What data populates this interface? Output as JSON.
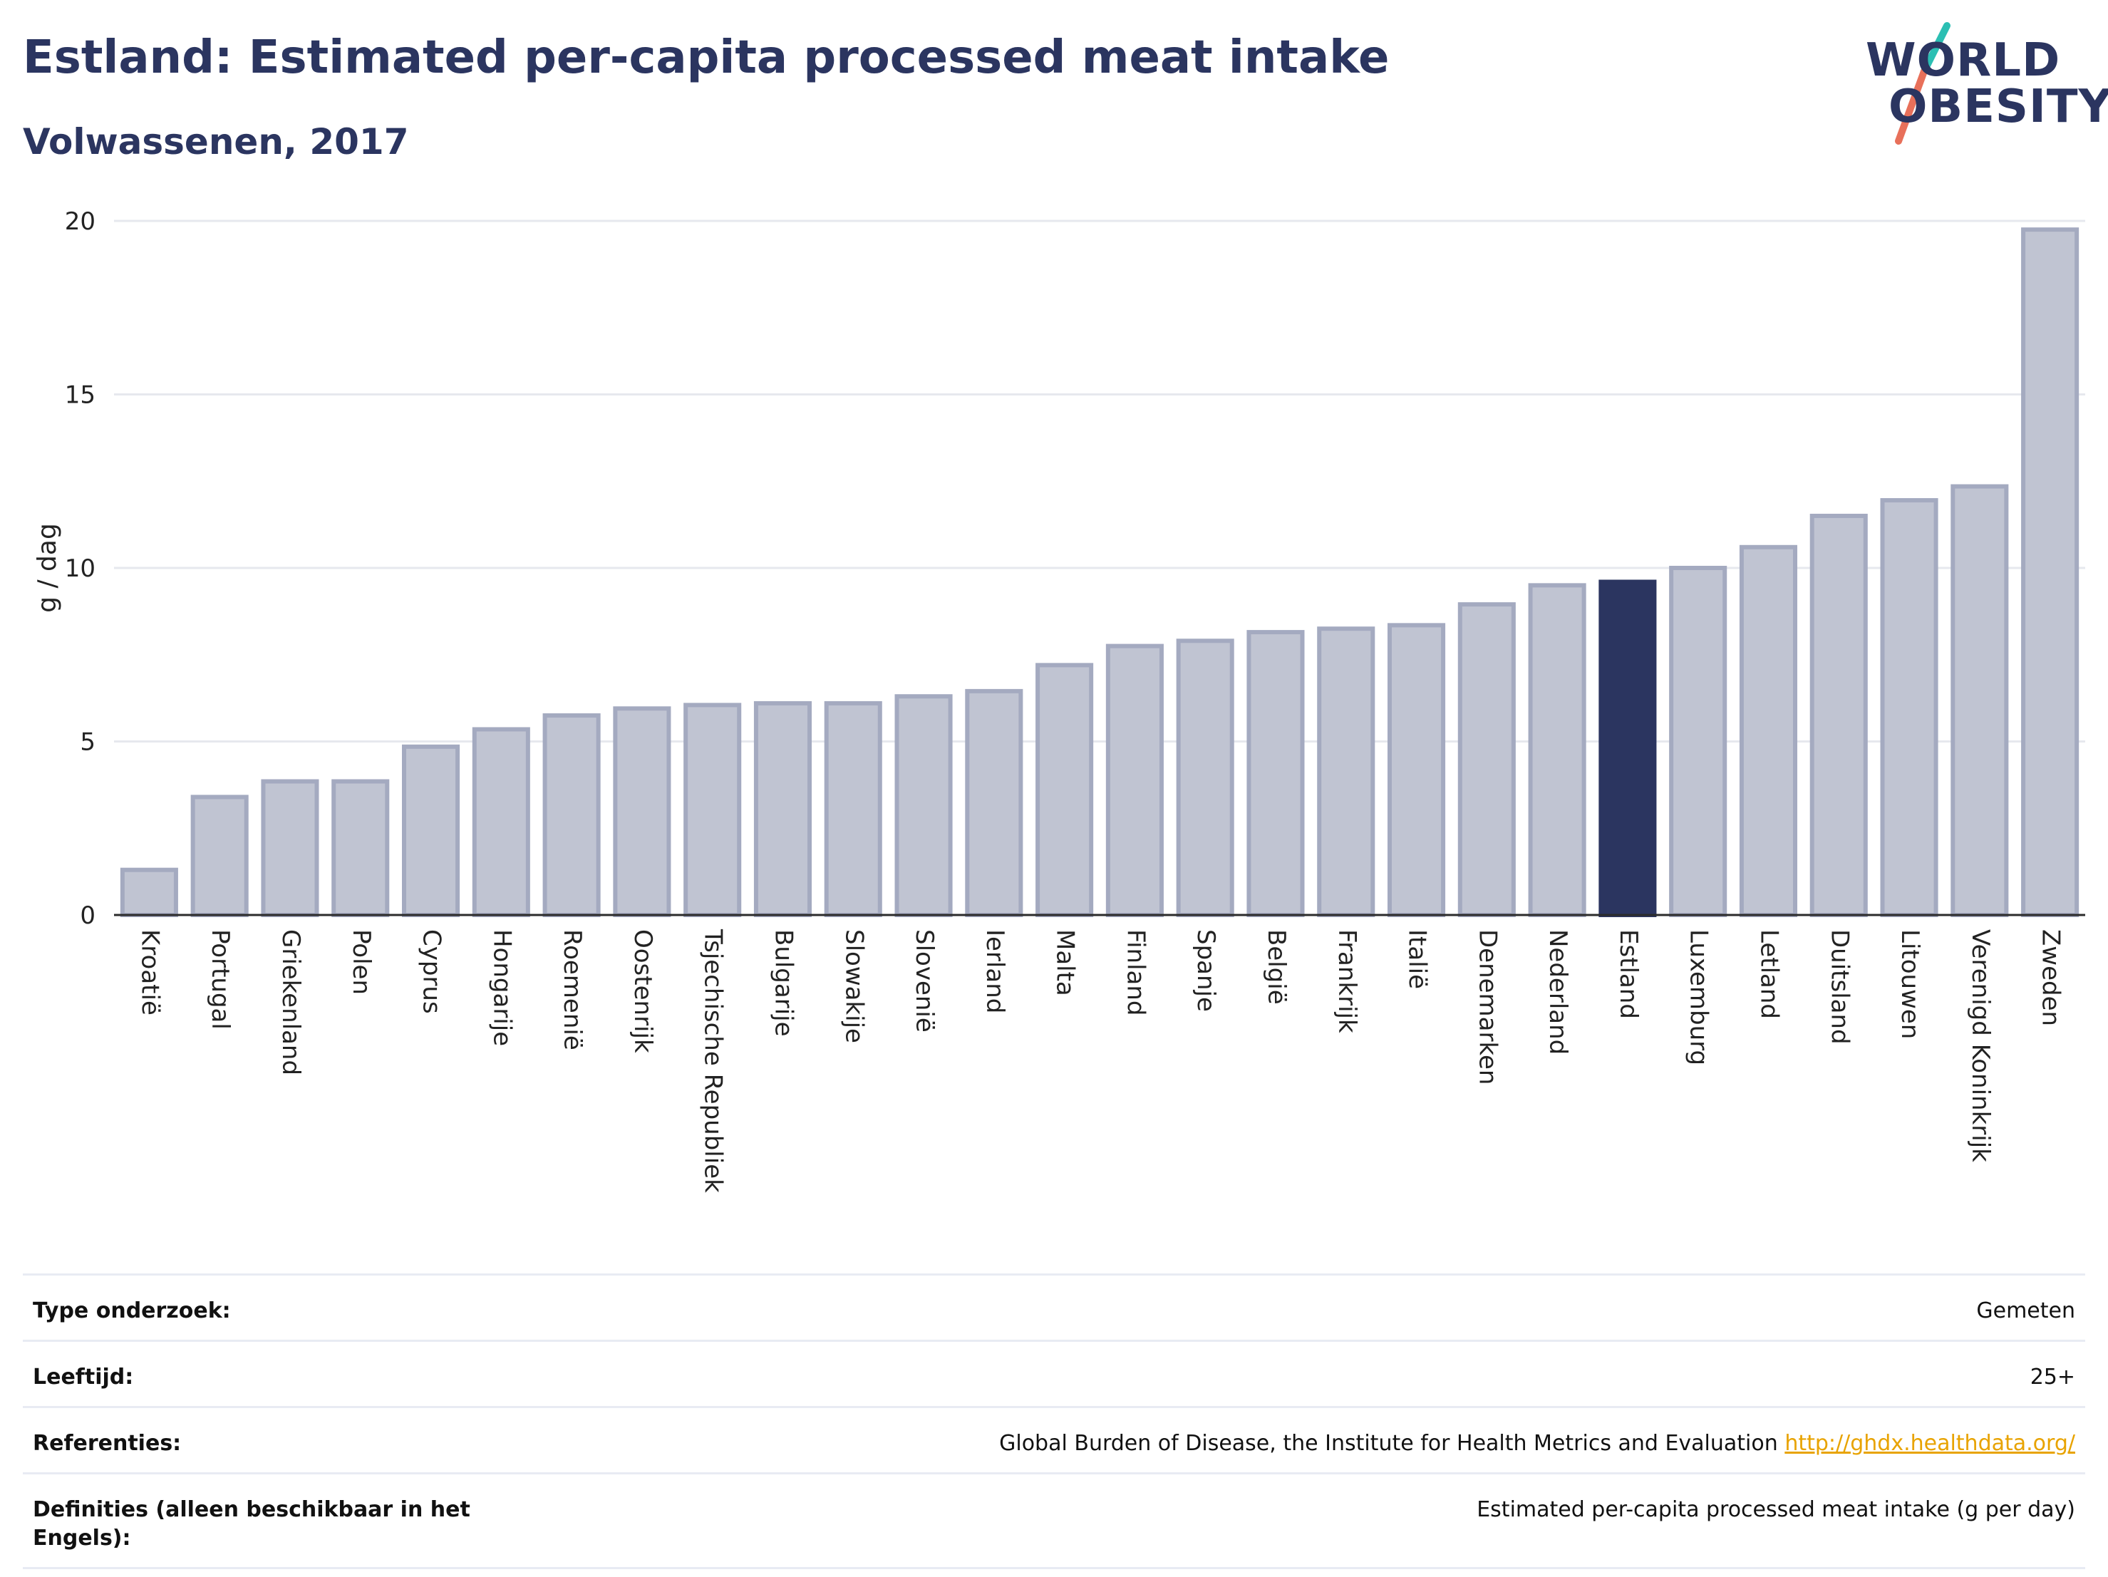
{
  "header": {
    "title": "Estland: Estimated per-capita processed meat intake",
    "subtitle": "Volwassenen, 2017"
  },
  "logo": {
    "line1": "WORLD",
    "line2": "OBESITY"
  },
  "colors": {
    "highlight": "#2b3560",
    "bar": "#c0c4d2",
    "bar_border": "#a4aac0",
    "accent_teal": "#2bbfb3",
    "accent_red": "#e8705a"
  },
  "chart_data": {
    "type": "bar",
    "title": "Estland: Estimated per-capita processed meat intake",
    "subtitle": "Volwassenen, 2017",
    "xlabel": "",
    "ylabel": "g / dag",
    "ylim": [
      0,
      20
    ],
    "yticks": [
      0,
      5,
      10,
      15,
      20
    ],
    "grid": true,
    "highlight": "Estland",
    "categories": [
      "Kroatië",
      "Portugal",
      "Griekenland",
      "Polen",
      "Cyprus",
      "Hongarije",
      "Roemenië",
      "Oostenrijk",
      "Tsjechische Republiek",
      "Bulgarije",
      "Slowakije",
      "Slovenië",
      "Ierland",
      "Malta",
      "Finland",
      "Spanje",
      "België",
      "Frankrijk",
      "Italië",
      "Denemarken",
      "Nederland",
      "Estland",
      "Luxemburg",
      "Letland",
      "Duitsland",
      "Litouwen",
      "Verenigd Koninkrijk",
      "Zweden"
    ],
    "values": [
      1.3,
      3.4,
      3.85,
      3.85,
      4.85,
      5.35,
      5.75,
      5.95,
      6.05,
      6.1,
      6.1,
      6.3,
      6.45,
      7.2,
      7.75,
      7.9,
      8.15,
      8.25,
      8.35,
      8.95,
      9.5,
      9.6,
      10.0,
      10.6,
      11.5,
      11.95,
      12.35,
      19.75
    ]
  },
  "info": {
    "rows": [
      {
        "label": "Type onderzoek:",
        "value": "Gemeten"
      },
      {
        "label": "Leeftijd:",
        "value": "25+"
      },
      {
        "label": "Referenties:",
        "value": "Global Burden of Disease, the Institute for Health Metrics and Evaluation",
        "link": "http://ghdx.healthdata.org/"
      },
      {
        "label": "Definities (alleen beschikbaar in het Engels):",
        "value": "Estimated per-capita processed meat intake (g per day)"
      }
    ]
  }
}
